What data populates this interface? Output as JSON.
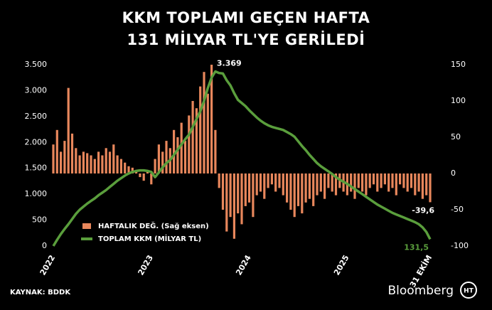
{
  "chart_data": {
    "type": "bar_line",
    "title": [
      "KKM TOPLAMI GEÇEN HAFTA",
      "131 MİLYAR TL'YE GERİLEDİ"
    ],
    "source": "KAYNAK: BDDK",
    "brand": "Bloomberg",
    "brand_mark": "HT",
    "legend": "lower-left",
    "grid": false,
    "categories": [
      "2022",
      null,
      null,
      null,
      null,
      null,
      null,
      null,
      null,
      null,
      null,
      null,
      null,
      null,
      null,
      null,
      null,
      null,
      null,
      null,
      null,
      null,
      null,
      null,
      null,
      null,
      "2023",
      null,
      null,
      null,
      null,
      null,
      null,
      null,
      null,
      null,
      null,
      null,
      null,
      null,
      null,
      null,
      null,
      null,
      null,
      null,
      null,
      null,
      null,
      null,
      null,
      null,
      "2024",
      null,
      null,
      null,
      null,
      null,
      null,
      null,
      null,
      null,
      null,
      null,
      null,
      null,
      null,
      null,
      null,
      null,
      null,
      null,
      null,
      null,
      null,
      null,
      null,
      null,
      "2025",
      null,
      null,
      null,
      null,
      null,
      null,
      null,
      null,
      null,
      null,
      null,
      null,
      null,
      null,
      null,
      null,
      null,
      null,
      null,
      null,
      null,
      "31 EKİM"
    ],
    "ylim": [
      0,
      3500
    ],
    "yticks": [
      0,
      500,
      {
        "value": 1000,
        "label": "1.000"
      },
      {
        "value": 1500,
        "label": "1.500"
      },
      {
        "value": 2000,
        "label": "2.000"
      },
      {
        "value": 2500,
        "label": "2.500"
      },
      {
        "value": 3000,
        "label": "3.000"
      },
      {
        "value": 3500,
        "label": "3.500"
      }
    ],
    "y2lim": [
      -100,
      150
    ],
    "y2ticks": [
      -100,
      -50,
      0,
      50,
      100,
      150
    ],
    "series": [
      {
        "name": "HAFTALIK DEĞ. (Sağ eksen)",
        "color": "#e8875c",
        "axis": "y2",
        "kind": "bar",
        "values": [
          40,
          60,
          30,
          45,
          118,
          55,
          35,
          25,
          30,
          28,
          25,
          20,
          30,
          25,
          35,
          30,
          40,
          25,
          20,
          15,
          10,
          8,
          5,
          -5,
          -10,
          5,
          -15,
          20,
          40,
          30,
          45,
          35,
          60,
          50,
          70,
          45,
          80,
          100,
          90,
          120,
          140,
          110,
          150,
          60,
          -20,
          -50,
          -80,
          -60,
          -90,
          -55,
          -70,
          -45,
          -40,
          -60,
          -30,
          -25,
          -35,
          -20,
          -15,
          -25,
          -20,
          -30,
          -40,
          -50,
          -60,
          -45,
          -55,
          -40,
          -35,
          -45,
          -30,
          -25,
          -35,
          -20,
          -25,
          -30,
          -20,
          -25,
          -30,
          -25,
          -35,
          -20,
          -25,
          -30,
          -20,
          -15,
          -25,
          -20,
          -15,
          -25,
          -20,
          -30,
          -15,
          -20,
          -25,
          -20,
          -30,
          -25,
          -35,
          -30,
          -39.6
        ],
        "value_labels": [
          null,
          null,
          null,
          null,
          null,
          null,
          null,
          null,
          null,
          null,
          null,
          null,
          null,
          null,
          null,
          null,
          null,
          null,
          null,
          null,
          null,
          null,
          null,
          null,
          null,
          null,
          null,
          null,
          null,
          null,
          null,
          null,
          null,
          null,
          null,
          null,
          null,
          null,
          null,
          null,
          null,
          null,
          null,
          null,
          null,
          null,
          null,
          null,
          null,
          null,
          null,
          null,
          null,
          null,
          null,
          null,
          null,
          null,
          null,
          null,
          null,
          null,
          null,
          null,
          null,
          null,
          null,
          null,
          null,
          null,
          null,
          null,
          null,
          null,
          null,
          null,
          null,
          null,
          null,
          null,
          null,
          null,
          null,
          null,
          null,
          null,
          null,
          null,
          null,
          null,
          null,
          null,
          null,
          null,
          null,
          null,
          null,
          null,
          null,
          null,
          "-39,6"
        ]
      },
      {
        "name": "TOPLAM KKM (MİLYAR TL)",
        "color": "#5a9e3c",
        "kind": "line",
        "values": [
          0,
          120,
          230,
          330,
          420,
          520,
          620,
          700,
          760,
          820,
          870,
          920,
          980,
          1030,
          1080,
          1140,
          1200,
          1260,
          1310,
          1360,
          1400,
          1430,
          1450,
          1460,
          1460,
          1450,
          1430,
          1330,
          1420,
          1520,
          1600,
          1660,
          1760,
          1860,
          1960,
          2060,
          2150,
          2300,
          2450,
          2600,
          2800,
          3050,
          3250,
          3369,
          3340,
          3330,
          3200,
          3100,
          2950,
          2820,
          2760,
          2700,
          2620,
          2550,
          2480,
          2420,
          2370,
          2330,
          2300,
          2280,
          2260,
          2240,
          2200,
          2160,
          2110,
          2020,
          1930,
          1850,
          1760,
          1680,
          1600,
          1540,
          1490,
          1440,
          1390,
          1330,
          1280,
          1240,
          1200,
          1150,
          1100,
          1050,
          1000,
          950,
          900,
          850,
          800,
          760,
          720,
          680,
          640,
          610,
          580,
          550,
          520,
          490,
          460,
          420,
          360,
          270,
          131.5
        ],
        "value_labels": [
          null,
          null,
          null,
          null,
          null,
          null,
          null,
          null,
          null,
          null,
          null,
          null,
          null,
          null,
          null,
          null,
          null,
          null,
          null,
          null,
          null,
          null,
          null,
          null,
          null,
          null,
          null,
          null,
          null,
          null,
          null,
          null,
          null,
          null,
          null,
          null,
          null,
          null,
          null,
          null,
          null,
          null,
          null,
          "3.369",
          null,
          null,
          null,
          null,
          null,
          null,
          null,
          null,
          null,
          null,
          null,
          null,
          null,
          null,
          null,
          null,
          null,
          null,
          null,
          null,
          null,
          null,
          null,
          null,
          null,
          null,
          null,
          null,
          null,
          null,
          null,
          null,
          null,
          null,
          null,
          null,
          null,
          null,
          null,
          null,
          null,
          null,
          null,
          null,
          null,
          null,
          null,
          null,
          null,
          null,
          null,
          null,
          null,
          null,
          null,
          null,
          "131,5"
        ]
      }
    ]
  }
}
